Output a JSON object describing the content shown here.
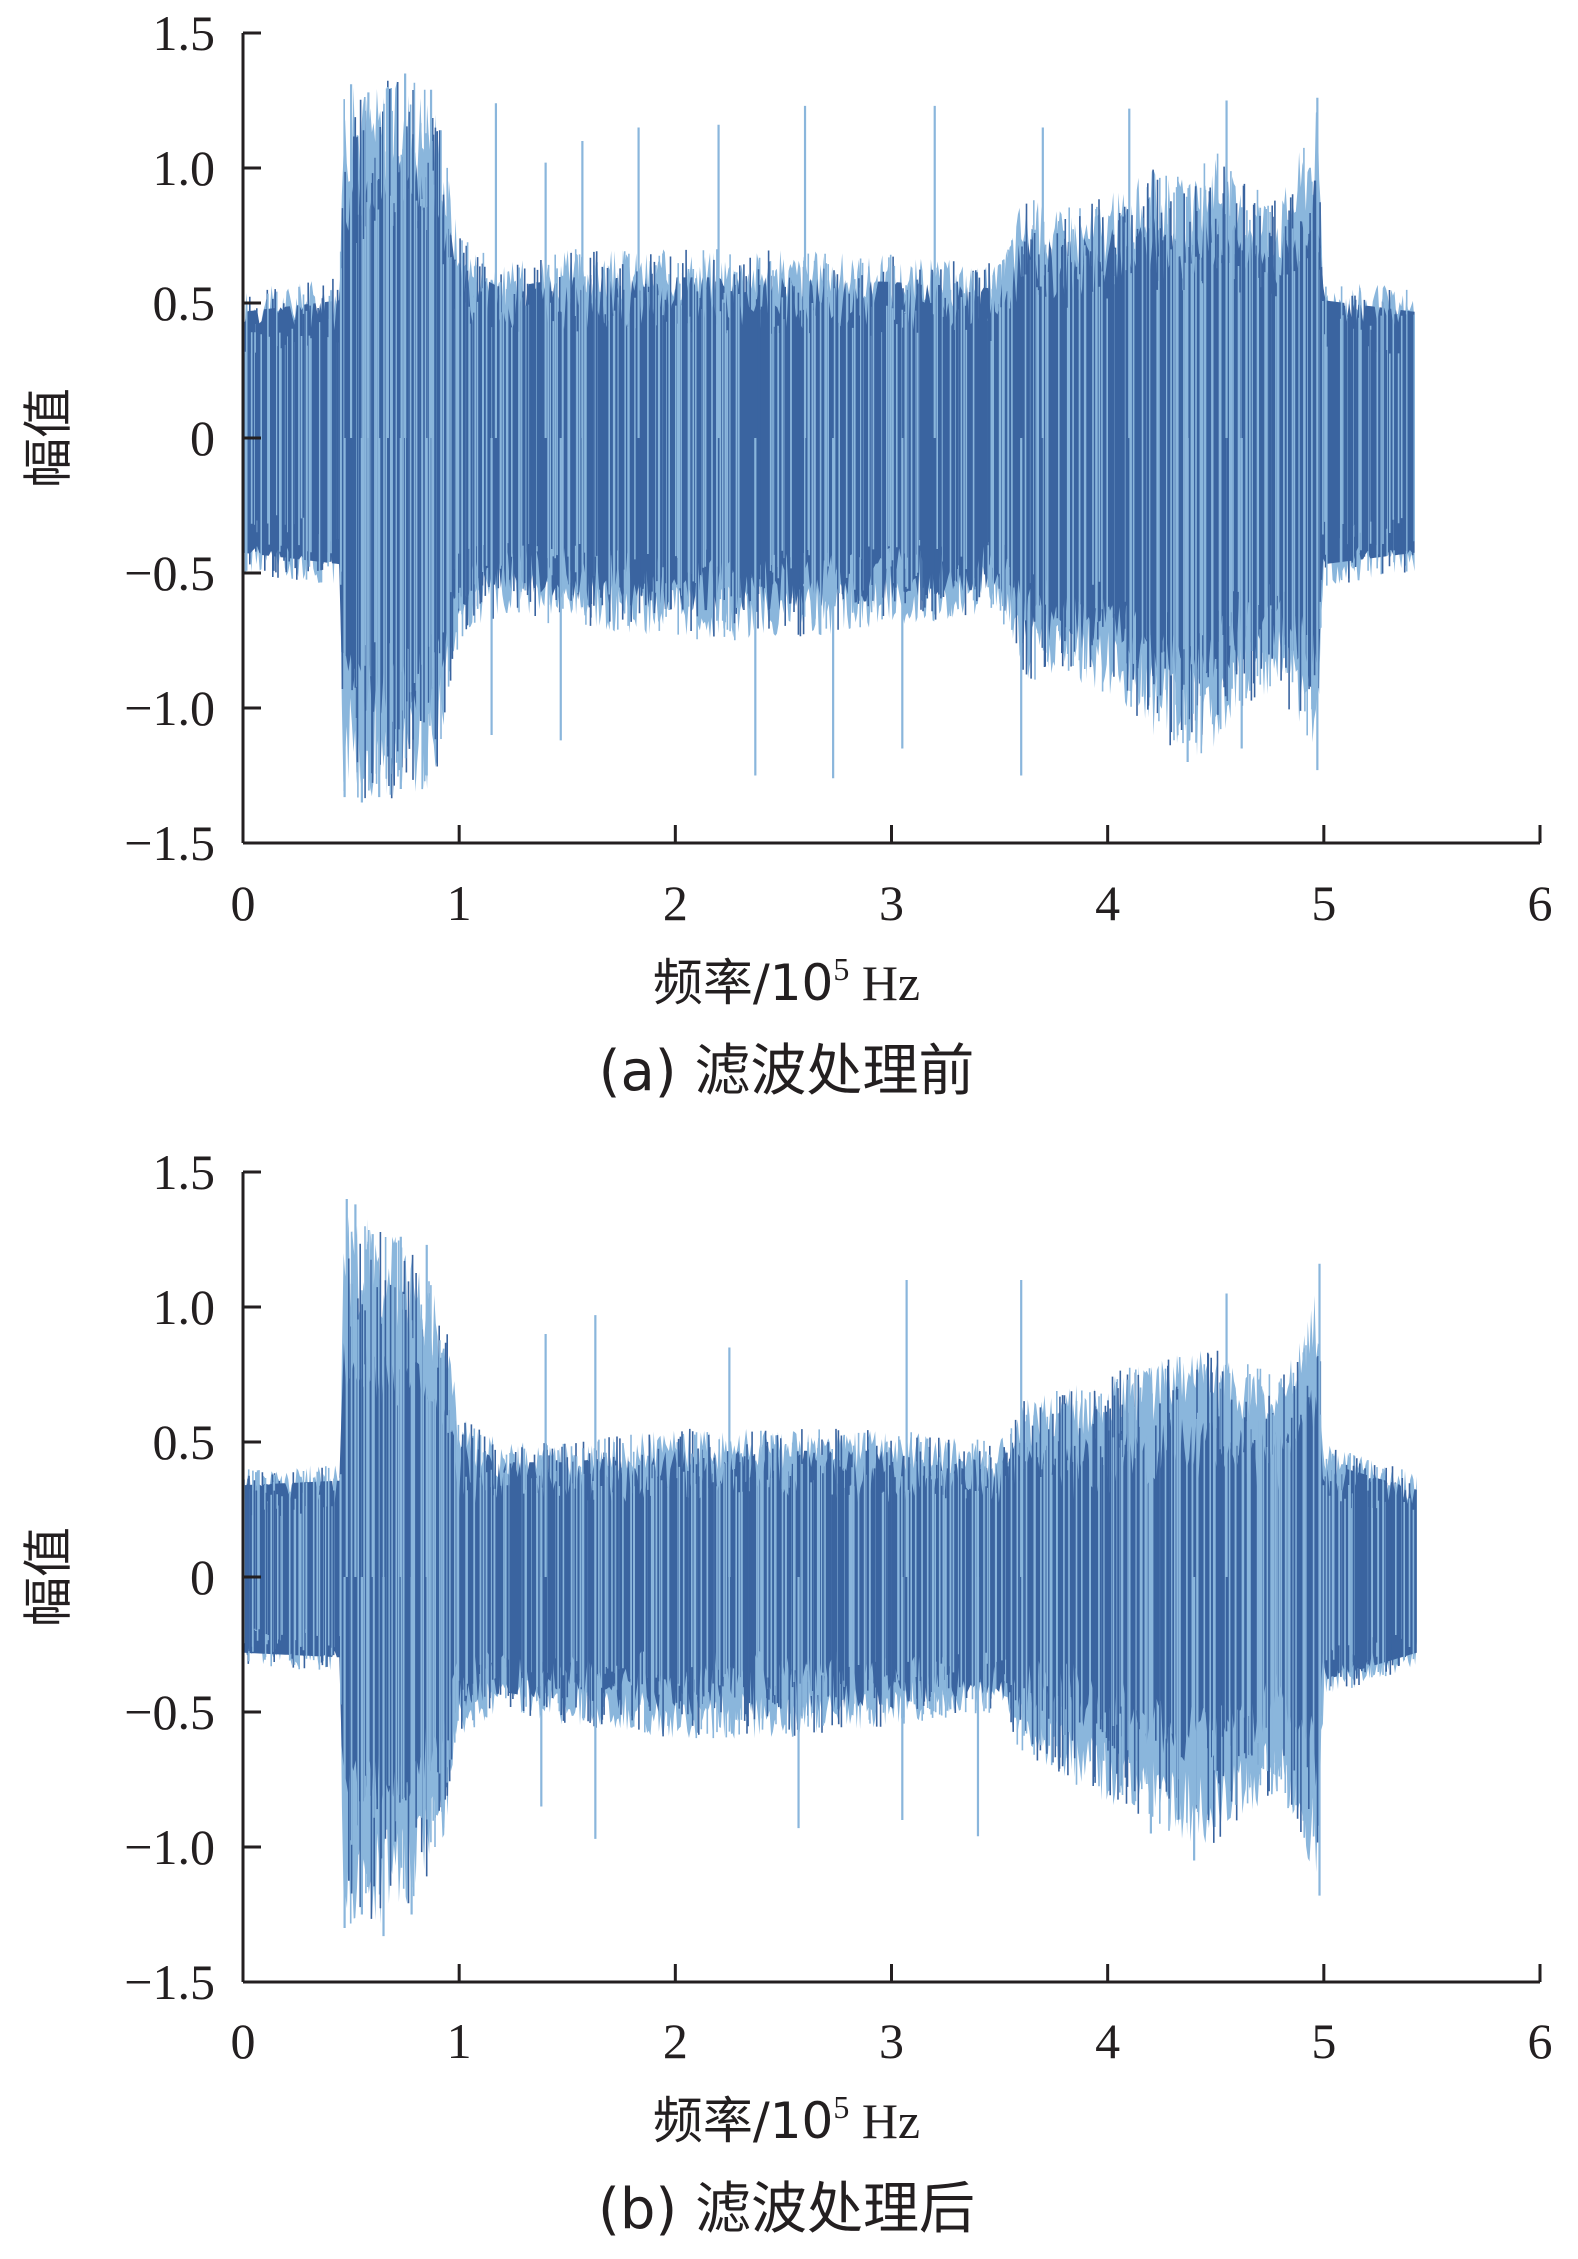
{
  "colors": {
    "signal_dark": "#3a64a0",
    "signal_light": "#8ab6dc",
    "axis": "#231f20"
  },
  "chart_data": [
    {
      "type": "line",
      "caption": "(a)  滤波处理前",
      "xlabel": "频率/10",
      "xlabel_exponent": "5",
      "xlabel_unit": " Hz",
      "ylabel": "幅值",
      "xlim": [
        0,
        6
      ],
      "ylim": [
        -1.5,
        1.5
      ],
      "x_ticks": [
        "0",
        "1",
        "2",
        "3",
        "4",
        "5",
        "6"
      ],
      "y_ticks": [
        "1.5",
        "1.0",
        "0.5",
        "0",
        "−0.5",
        "−1.0",
        "−1.5"
      ],
      "grid": false,
      "series": [
        {
          "x_range": [
            0,
            5.42
          ],
          "envelope_x": [
            0,
            0.45,
            0.46,
            0.6,
            0.75,
            0.88,
            0.95,
            1.0,
            1.2,
            1.5,
            2.0,
            2.5,
            3.0,
            3.5,
            3.6,
            3.8,
            4.0,
            4.2,
            4.4,
            4.5,
            4.6,
            4.8,
            4.97,
            5.0,
            5.42
          ],
          "envelope_max": [
            0.55,
            0.6,
            1.3,
            1.32,
            1.33,
            1.3,
            1.0,
            0.75,
            0.65,
            0.7,
            0.7,
            0.7,
            0.68,
            0.65,
            0.9,
            0.85,
            0.9,
            1.0,
            0.95,
            1.1,
            0.95,
            0.9,
            1.25,
            0.6,
            0.55
          ],
          "envelope_min": [
            -0.5,
            -0.55,
            -1.32,
            -1.35,
            -1.33,
            -1.3,
            -1.0,
            -0.75,
            -0.65,
            -0.7,
            -0.75,
            -0.75,
            -0.7,
            -0.65,
            -0.9,
            -0.9,
            -0.95,
            -1.1,
            -1.2,
            -1.15,
            -1.0,
            -0.95,
            -1.22,
            -0.55,
            -0.5
          ],
          "core_amplitude": 0.4,
          "spikes_high": [
            {
              "x": 0.5,
              "y": 1.31
            },
            {
              "x": 0.58,
              "y": 1.28
            },
            {
              "x": 0.67,
              "y": 1.3
            },
            {
              "x": 0.75,
              "y": 1.35
            },
            {
              "x": 0.87,
              "y": 1.29
            },
            {
              "x": 1.17,
              "y": 1.24
            },
            {
              "x": 1.4,
              "y": 1.02
            },
            {
              "x": 1.57,
              "y": 1.1
            },
            {
              "x": 1.83,
              "y": 1.15
            },
            {
              "x": 2.2,
              "y": 1.16
            },
            {
              "x": 2.6,
              "y": 1.23
            },
            {
              "x": 3.2,
              "y": 1.23
            },
            {
              "x": 3.7,
              "y": 1.15
            },
            {
              "x": 4.1,
              "y": 1.22
            },
            {
              "x": 4.55,
              "y": 1.25
            },
            {
              "x": 4.97,
              "y": 1.26
            }
          ],
          "spikes_low": [
            {
              "x": 0.47,
              "y": -1.33
            },
            {
              "x": 0.55,
              "y": -1.35
            },
            {
              "x": 0.63,
              "y": -1.33
            },
            {
              "x": 0.73,
              "y": -1.3
            },
            {
              "x": 0.85,
              "y": -1.25
            },
            {
              "x": 1.15,
              "y": -1.1
            },
            {
              "x": 1.47,
              "y": -1.12
            },
            {
              "x": 2.37,
              "y": -1.25
            },
            {
              "x": 2.73,
              "y": -1.26
            },
            {
              "x": 3.05,
              "y": -1.15
            },
            {
              "x": 3.6,
              "y": -1.25
            },
            {
              "x": 4.37,
              "y": -1.2
            },
            {
              "x": 4.62,
              "y": -1.15
            },
            {
              "x": 4.97,
              "y": -1.23
            }
          ]
        }
      ]
    },
    {
      "type": "line",
      "caption": "(b)  滤波处理后",
      "xlabel": "频率/10",
      "xlabel_exponent": "5",
      "xlabel_unit": " Hz",
      "ylabel": "幅值",
      "xlim": [
        0,
        6
      ],
      "ylim": [
        -1.5,
        1.5
      ],
      "x_ticks": [
        "0",
        "1",
        "2",
        "3",
        "4",
        "5",
        "6"
      ],
      "y_ticks": [
        "1.5",
        "1.0",
        "0.5",
        "0",
        "−0.5",
        "−1.0",
        "−1.5"
      ],
      "grid": false,
      "series": [
        {
          "x_range": [
            0,
            5.43
          ],
          "envelope_x": [
            0,
            0.45,
            0.46,
            0.6,
            0.75,
            0.88,
            0.95,
            1.0,
            1.2,
            1.5,
            2.0,
            2.5,
            3.0,
            3.5,
            3.6,
            3.8,
            4.0,
            4.2,
            4.4,
            4.5,
            4.6,
            4.8,
            4.97,
            5.0,
            5.43
          ],
          "envelope_max": [
            0.4,
            0.42,
            1.35,
            1.32,
            1.25,
            1.1,
            0.9,
            0.6,
            0.5,
            0.5,
            0.55,
            0.55,
            0.55,
            0.5,
            0.65,
            0.7,
            0.75,
            0.8,
            0.85,
            0.85,
            0.8,
            0.75,
            1.1,
            0.5,
            0.38
          ],
          "envelope_min": [
            -0.33,
            -0.35,
            -1.28,
            -1.3,
            -1.25,
            -1.1,
            -0.9,
            -0.6,
            -0.5,
            -0.55,
            -0.6,
            -0.6,
            -0.55,
            -0.5,
            -0.65,
            -0.75,
            -0.85,
            -0.9,
            -1.0,
            -1.0,
            -0.9,
            -0.8,
            -1.15,
            -0.45,
            -0.33
          ],
          "core_amplitude": 0.27,
          "spikes_high": [
            {
              "x": 0.48,
              "y": 1.4
            },
            {
              "x": 0.52,
              "y": 1.38
            },
            {
              "x": 0.6,
              "y": 1.27
            },
            {
              "x": 0.73,
              "y": 1.26
            },
            {
              "x": 0.85,
              "y": 1.23
            },
            {
              "x": 1.4,
              "y": 0.9
            },
            {
              "x": 1.63,
              "y": 0.97
            },
            {
              "x": 2.25,
              "y": 0.85
            },
            {
              "x": 3.07,
              "y": 1.1
            },
            {
              "x": 3.6,
              "y": 1.1
            },
            {
              "x": 4.55,
              "y": 1.05
            },
            {
              "x": 4.98,
              "y": 1.16
            }
          ],
          "spikes_low": [
            {
              "x": 0.47,
              "y": -1.3
            },
            {
              "x": 0.55,
              "y": -1.25
            },
            {
              "x": 0.65,
              "y": -1.33
            },
            {
              "x": 0.78,
              "y": -1.25
            },
            {
              "x": 1.38,
              "y": -0.85
            },
            {
              "x": 1.63,
              "y": -0.97
            },
            {
              "x": 2.57,
              "y": -0.93
            },
            {
              "x": 3.05,
              "y": -0.9
            },
            {
              "x": 3.4,
              "y": -0.96
            },
            {
              "x": 4.2,
              "y": -0.95
            },
            {
              "x": 4.4,
              "y": -1.05
            },
            {
              "x": 4.98,
              "y": -1.18
            }
          ]
        }
      ]
    }
  ]
}
